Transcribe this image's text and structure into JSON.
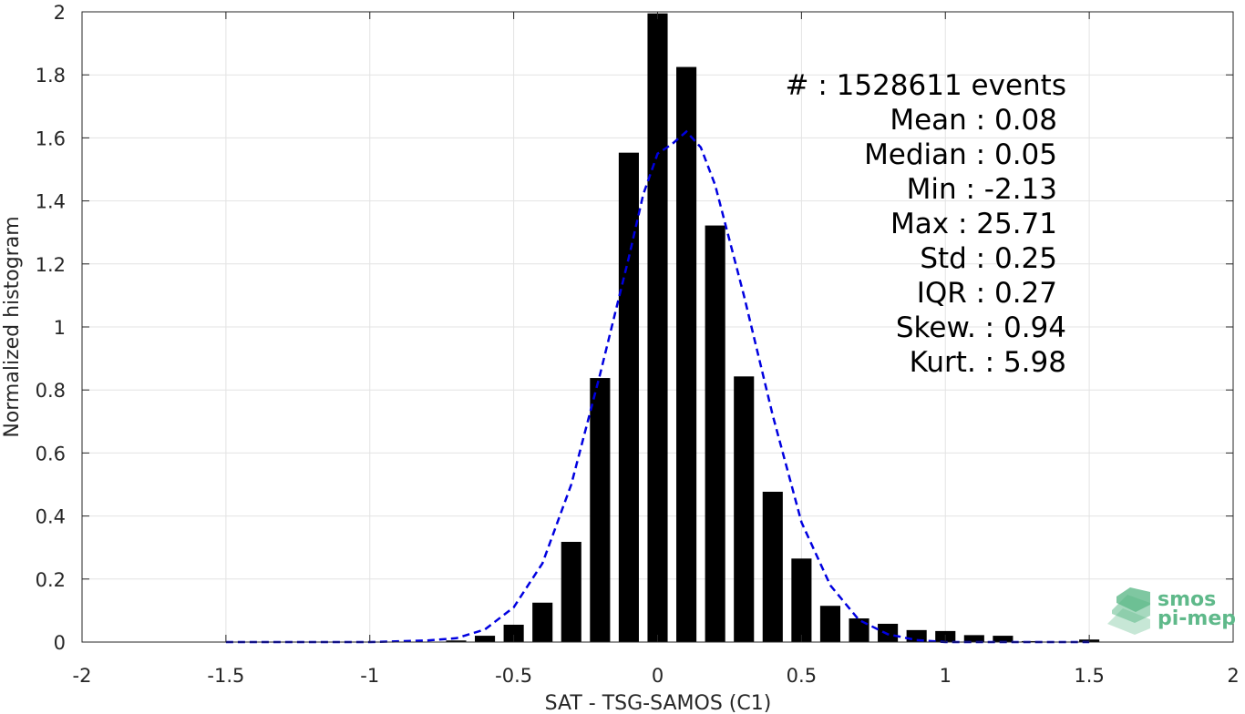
{
  "chart_data": {
    "type": "bar",
    "xlabel": "SAT - TSG-SAMOS (C1)",
    "ylabel": "Normalized histogram",
    "xlim": [
      -2,
      2
    ],
    "ylim": [
      0,
      2
    ],
    "grid": true,
    "bar_color": "#000000",
    "fit_color": "#0000e0",
    "x_ticks": [
      "-2",
      "-1.5",
      "-1",
      "-0.5",
      "0",
      "0.5",
      "1",
      "1.5",
      "2"
    ],
    "y_ticks": [
      "0",
      "0.2",
      "0.4",
      "0.6",
      "0.8",
      "1",
      "1.2",
      "1.4",
      "1.6",
      "1.8",
      "2"
    ],
    "x_tick_values": [
      -2,
      -1.5,
      -1,
      -0.5,
      0,
      0.5,
      1,
      1.5,
      2
    ],
    "y_tick_values": [
      0,
      0.2,
      0.4,
      0.6,
      0.8,
      1,
      1.2,
      1.4,
      1.6,
      1.8,
      2
    ],
    "bin_width": 0.1,
    "bars": [
      {
        "x": -0.7,
        "y": 0.005
      },
      {
        "x": -0.6,
        "y": 0.02
      },
      {
        "x": -0.5,
        "y": 0.055
      },
      {
        "x": -0.4,
        "y": 0.125
      },
      {
        "x": -0.3,
        "y": 0.318
      },
      {
        "x": -0.2,
        "y": 0.838
      },
      {
        "x": -0.1,
        "y": 1.553
      },
      {
        "x": 0.0,
        "y": 1.995
      },
      {
        "x": 0.1,
        "y": 1.825
      },
      {
        "x": 0.2,
        "y": 1.322
      },
      {
        "x": 0.3,
        "y": 0.843
      },
      {
        "x": 0.4,
        "y": 0.477
      },
      {
        "x": 0.5,
        "y": 0.265
      },
      {
        "x": 0.6,
        "y": 0.115
      },
      {
        "x": 0.7,
        "y": 0.075
      },
      {
        "x": 0.8,
        "y": 0.058
      },
      {
        "x": 0.9,
        "y": 0.038
      },
      {
        "x": 1.0,
        "y": 0.035
      },
      {
        "x": 1.1,
        "y": 0.022
      },
      {
        "x": 1.2,
        "y": 0.02
      },
      {
        "x": 1.3,
        "y": 0.003
      },
      {
        "x": 1.5,
        "y": 0.008
      }
    ],
    "fit_curve": [
      {
        "x": -1.5,
        "y": 0.0
      },
      {
        "x": -1.0,
        "y": 0.0
      },
      {
        "x": -0.8,
        "y": 0.005
      },
      {
        "x": -0.7,
        "y": 0.012
      },
      {
        "x": -0.6,
        "y": 0.04
      },
      {
        "x": -0.5,
        "y": 0.11
      },
      {
        "x": -0.4,
        "y": 0.25
      },
      {
        "x": -0.3,
        "y": 0.5
      },
      {
        "x": -0.2,
        "y": 0.85
      },
      {
        "x": -0.1,
        "y": 1.22
      },
      {
        "x": -0.05,
        "y": 1.42
      },
      {
        "x": 0.0,
        "y": 1.55
      },
      {
        "x": 0.05,
        "y": 1.58
      },
      {
        "x": 0.1,
        "y": 1.62
      },
      {
        "x": 0.15,
        "y": 1.57
      },
      {
        "x": 0.2,
        "y": 1.45
      },
      {
        "x": 0.3,
        "y": 1.1
      },
      {
        "x": 0.4,
        "y": 0.72
      },
      {
        "x": 0.5,
        "y": 0.38
      },
      {
        "x": 0.6,
        "y": 0.18
      },
      {
        "x": 0.7,
        "y": 0.07
      },
      {
        "x": 0.8,
        "y": 0.025
      },
      {
        "x": 0.9,
        "y": 0.006
      },
      {
        "x": 1.0,
        "y": 0.0
      },
      {
        "x": 1.5,
        "y": 0.0
      }
    ],
    "annotations": [
      {
        "key": "#  : 1528611 events"
      },
      {
        "key": "Mean : 0.08"
      },
      {
        "key": "Median : 0.05"
      },
      {
        "key": "Min : -2.13"
      },
      {
        "key": "Max : 25.71"
      },
      {
        "key": "Std : 0.25"
      },
      {
        "key": "IQR : 0.27"
      },
      {
        "key": "Skew. : 0.94"
      },
      {
        "key": "Kurt. : 5.98"
      }
    ]
  },
  "logo": {
    "line1": "smos",
    "line2": "pi-mep",
    "color": "#5fb98a"
  }
}
